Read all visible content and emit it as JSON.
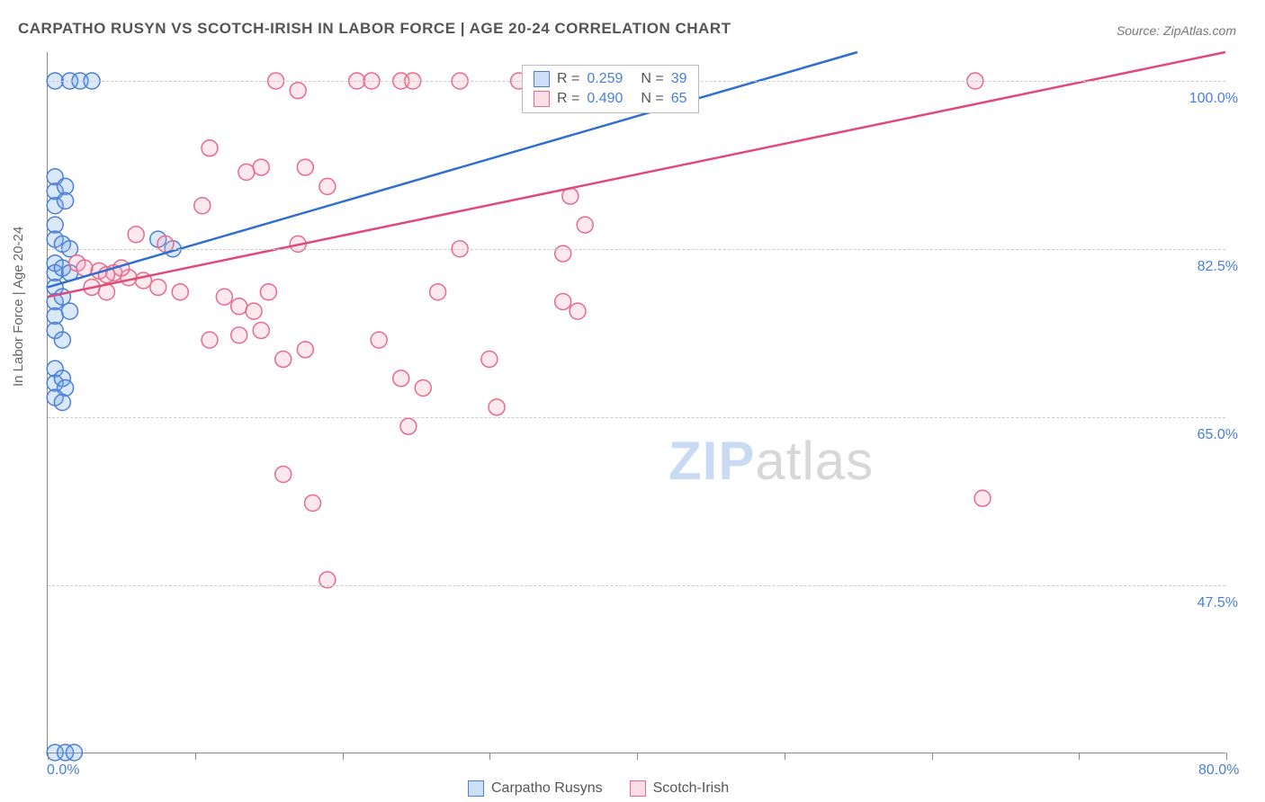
{
  "title": "CARPATHO RUSYN VS SCOTCH-IRISH IN LABOR FORCE | AGE 20-24 CORRELATION CHART",
  "source": "Source: ZipAtlas.com",
  "y_axis_label": "In Labor Force | Age 20-24",
  "watermark_a": "ZIP",
  "watermark_b": "atlas",
  "chart": {
    "type": "scatter",
    "background_color": "#ffffff",
    "grid_color": "#cccccc",
    "axis_color": "#888888",
    "xlim": [
      0,
      80
    ],
    "ylim": [
      30,
      103
    ],
    "x_ticks": [
      0,
      10,
      20,
      30,
      40,
      50,
      60,
      70,
      80
    ],
    "x_tick_labels": {
      "0": "0.0%",
      "80": "80.0%"
    },
    "y_gridlines": [
      47.5,
      65.0,
      82.5,
      100.0
    ],
    "y_tick_labels": [
      "47.5%",
      "65.0%",
      "82.5%",
      "100.0%"
    ],
    "series": [
      {
        "name": "Carpatho Rusyns",
        "color": "#6fa3e8",
        "fill": "rgba(111,163,232,0.25)",
        "stroke": "#4a7fd8",
        "r_value": "0.259",
        "n_value": "39",
        "marker_radius": 9,
        "regression": {
          "x1": 0,
          "y1": 78.5,
          "x2": 55,
          "y2": 103,
          "stroke": "#2f6fd0",
          "width": 2.5
        },
        "points": [
          [
            0.5,
            100
          ],
          [
            1.5,
            100
          ],
          [
            2.2,
            100
          ],
          [
            3.0,
            100
          ],
          [
            0.5,
            90
          ],
          [
            0.5,
            88.5
          ],
          [
            0.5,
            87
          ],
          [
            1.2,
            89
          ],
          [
            1.2,
            87.5
          ],
          [
            0.5,
            85
          ],
          [
            0.5,
            83.5
          ],
          [
            1.0,
            83
          ],
          [
            1.5,
            82.5
          ],
          [
            0.5,
            81
          ],
          [
            0.5,
            80
          ],
          [
            1.0,
            80.5
          ],
          [
            1.5,
            80
          ],
          [
            0.5,
            78.5
          ],
          [
            0.5,
            77
          ],
          [
            0.5,
            75.5
          ],
          [
            1.0,
            77.5
          ],
          [
            1.5,
            76
          ],
          [
            0.5,
            74
          ],
          [
            1.0,
            73
          ],
          [
            0.5,
            70
          ],
          [
            0.5,
            68.5
          ],
          [
            1.0,
            69
          ],
          [
            1.2,
            68
          ],
          [
            0.5,
            67
          ],
          [
            1.0,
            66.5
          ],
          [
            8.5,
            82.5
          ],
          [
            7.5,
            83.5
          ],
          [
            0.5,
            30
          ],
          [
            1.2,
            30
          ],
          [
            1.8,
            30
          ]
        ]
      },
      {
        "name": "Scotch-Irish",
        "color": "#f5a3b8",
        "fill": "rgba(245,163,184,0.25)",
        "stroke": "#e86a8e",
        "r_value": "0.490",
        "n_value": "65",
        "marker_radius": 9,
        "regression": {
          "x1": 0,
          "y1": 77.5,
          "x2": 80,
          "y2": 103,
          "stroke": "#e04a78",
          "width": 2.5
        },
        "points": [
          [
            15.5,
            100
          ],
          [
            17.0,
            99
          ],
          [
            21.0,
            100
          ],
          [
            22.0,
            100
          ],
          [
            24.0,
            100
          ],
          [
            24.8,
            100
          ],
          [
            28.0,
            100
          ],
          [
            32.0,
            100
          ],
          [
            35.0,
            100
          ],
          [
            36.5,
            100
          ],
          [
            38.0,
            100
          ],
          [
            39.0,
            100
          ],
          [
            40.0,
            100
          ],
          [
            63.0,
            100
          ],
          [
            11.0,
            93
          ],
          [
            14.5,
            91
          ],
          [
            13.5,
            90.5
          ],
          [
            17.5,
            91
          ],
          [
            10.5,
            87
          ],
          [
            19.0,
            89
          ],
          [
            6.0,
            84
          ],
          [
            8.0,
            83
          ],
          [
            17.0,
            83
          ],
          [
            2.0,
            81
          ],
          [
            2.5,
            80.5
          ],
          [
            3.5,
            80.2
          ],
          [
            4.5,
            80
          ],
          [
            5.5,
            79.5
          ],
          [
            6.5,
            79.2
          ],
          [
            3.0,
            78.5
          ],
          [
            4.0,
            78
          ],
          [
            7.5,
            78.5
          ],
          [
            9.0,
            78
          ],
          [
            12.0,
            77.5
          ],
          [
            13.0,
            76.5
          ],
          [
            14.0,
            76
          ],
          [
            15.0,
            78
          ],
          [
            26.5,
            78
          ],
          [
            28.0,
            82.5
          ],
          [
            35.0,
            82
          ],
          [
            35.0,
            77
          ],
          [
            36.0,
            76
          ],
          [
            11.0,
            73
          ],
          [
            13.0,
            73.5
          ],
          [
            14.5,
            74
          ],
          [
            16.0,
            71
          ],
          [
            17.5,
            72
          ],
          [
            22.5,
            73
          ],
          [
            24.0,
            69
          ],
          [
            25.5,
            68
          ],
          [
            30.0,
            71
          ],
          [
            30.5,
            66
          ],
          [
            24.5,
            64
          ],
          [
            16.0,
            59
          ],
          [
            18.0,
            56
          ],
          [
            19.0,
            48
          ],
          [
            4.0,
            79.8
          ],
          [
            5.0,
            80.5
          ],
          [
            36.5,
            85
          ],
          [
            35.5,
            88
          ],
          [
            63.5,
            56.5
          ]
        ]
      }
    ]
  },
  "legend_bottom": [
    {
      "label": "Carpatho Rusyns",
      "fill": "rgba(111,163,232,0.35)",
      "border": "#4a7fd8"
    },
    {
      "label": "Scotch-Irish",
      "fill": "rgba(245,163,184,0.35)",
      "border": "#e86a8e"
    }
  ],
  "legend_top_labels": {
    "r": "R = ",
    "n": "N = "
  }
}
